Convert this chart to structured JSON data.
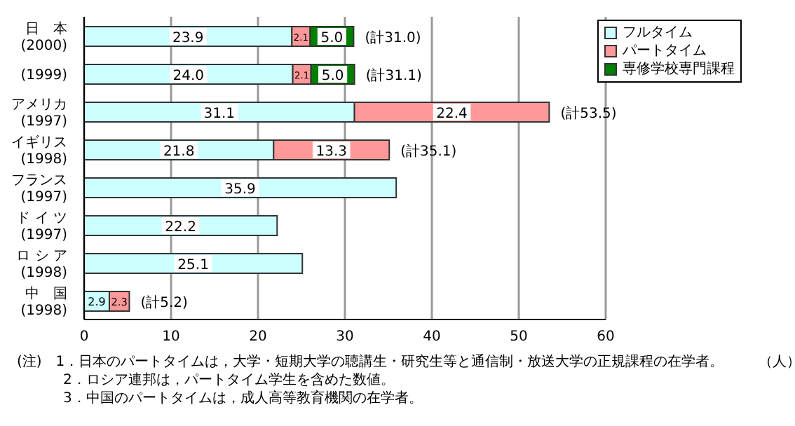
{
  "chart_data": {
    "type": "bar",
    "orientation": "horizontal",
    "stacked": true,
    "categories": [
      "日　本\n(2000)",
      "(1999)",
      "アメリカ\n(1997)",
      "イギリス\n(1998)",
      "フランス\n(1997)",
      "ド イ ツ\n(1997)",
      "ロ シ ア\n(1998)",
      "中　国\n(1998)"
    ],
    "series": [
      {
        "name": "フルタイム",
        "color": "#ccffff",
        "values": [
          23.9,
          24.0,
          31.1,
          21.8,
          35.9,
          22.2,
          25.1,
          2.9
        ],
        "value_labels": [
          "23.9",
          "24.0",
          "31.1",
          "21.8",
          "35.9",
          "22.2",
          "25.1",
          "2.9"
        ]
      },
      {
        "name": "パートタイム",
        "color": "#ff9999",
        "values": [
          2.1,
          2.1,
          22.4,
          13.3,
          null,
          null,
          null,
          2.3
        ],
        "value_labels": [
          "2.1",
          "2.1",
          "22.4",
          "13.3",
          null,
          null,
          null,
          "2.3"
        ]
      },
      {
        "name": "専修学校専門課程",
        "color": "#008000",
        "values": [
          5.0,
          5.0,
          null,
          null,
          null,
          null,
          null,
          null
        ],
        "value_labels": [
          "5.0",
          "5.0",
          null,
          null,
          null,
          null,
          null,
          null
        ]
      }
    ],
    "totals": [
      "(計31.0)",
      "(計31.1)",
      "(計53.5)",
      "(計35.1)",
      null,
      null,
      null,
      "(計5.2)"
    ],
    "xlim": [
      0,
      60
    ],
    "xticks": [
      0,
      10,
      20,
      30,
      40,
      50,
      60
    ],
    "grid": "x",
    "legend": "top right",
    "annotations": [
      "（人）",
      "(注)　1．日本のパートタイムは，大学・短期大学の聴講生・研究生等と通信制・放送大学の正規課程の在学者。",
      "2．ロシア連邦は，パートタイム学生を含めた数値。",
      "3．中国のパートタイムは，成人高等教育機関の在学者。"
    ]
  }
}
